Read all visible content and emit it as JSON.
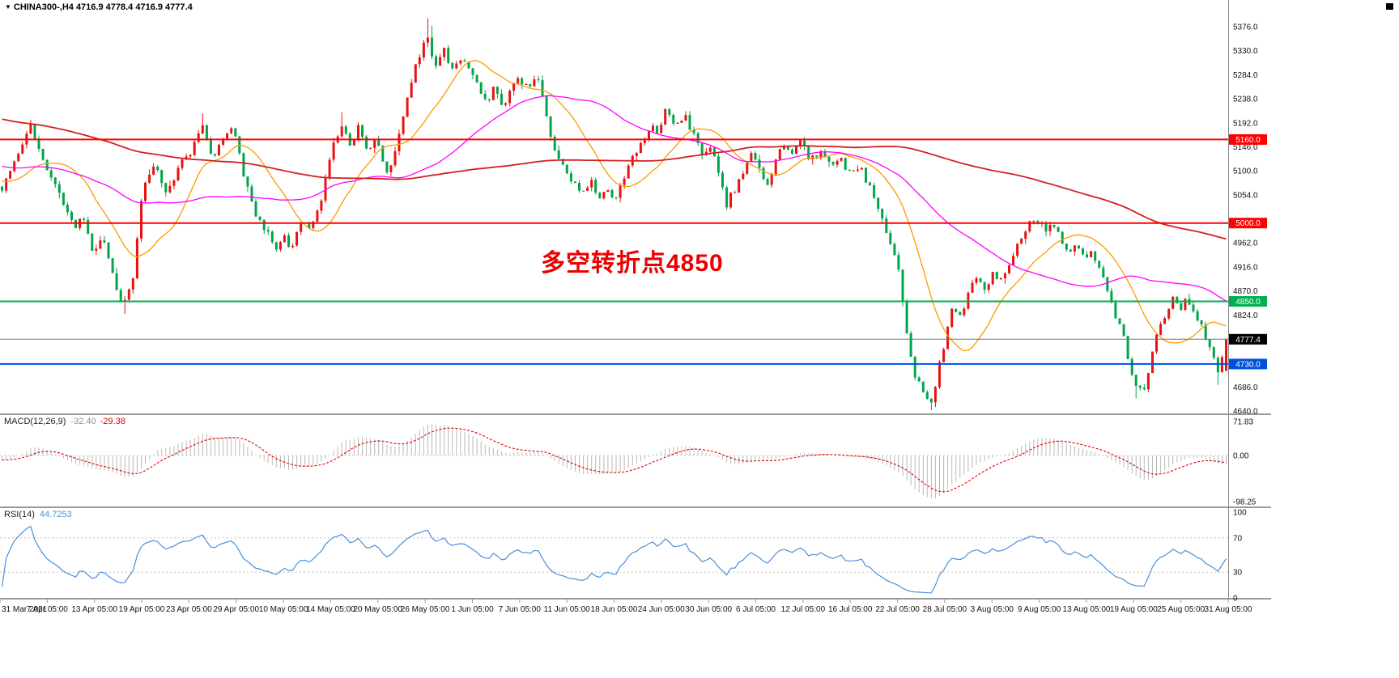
{
  "window": {
    "dropdown_icon": "▼",
    "symbol_ohlc": "CHINA300-,H4  4716.9 4778.4 4716.9 4777.4"
  },
  "annotation": {
    "text": "多空转折点4850",
    "color": "#ee0000"
  },
  "main_chart": {
    "y_axis": {
      "max": 5376.0,
      "min": 4640.0,
      "ticks": [
        5376.0,
        5330.0,
        5284.0,
        5238.0,
        5192.0,
        5146.0,
        5100.0,
        5054.0,
        4962.0,
        4916.0,
        4870.0,
        4824.0,
        4686.0,
        4640.0
      ]
    },
    "price_lines": [
      {
        "value": 5160.0,
        "label": "5160.0",
        "color": "#ff0000"
      },
      {
        "value": 5000.0,
        "label": "5000.0",
        "color": "#ff0000"
      },
      {
        "value": 4850.0,
        "label": "4850.0",
        "color": "#00b050"
      },
      {
        "value": 4730.0,
        "label": "4730.0",
        "color": "#0050e0"
      }
    ],
    "current_price": {
      "value": 4777.4,
      "label": "4777.4",
      "bg": "#000000"
    }
  },
  "macd_panel": {
    "label": "MACD(12,26,9)",
    "value_main": "-32.40",
    "value_signal": "-29.38",
    "scale": [
      "71.83",
      "0.00",
      "-98.25"
    ],
    "scale_values": [
      71.83,
      0.0,
      -98.25
    ],
    "histogram_color": "#b9b9b9",
    "signal_color": "#e00000"
  },
  "rsi_panel": {
    "label": "RSI(14)",
    "value": "44.7253",
    "scale": [
      "100",
      "70",
      "30",
      "0"
    ],
    "scale_values": [
      100,
      70,
      30,
      0
    ],
    "levels": [
      70,
      30
    ],
    "line_color": "#4a90d9"
  },
  "chart_data": {
    "type": "candlestick",
    "symbol": "CHINA300-",
    "timeframe": "H4",
    "ohlc": {
      "open": 4716.9,
      "high": 4778.4,
      "low": 4716.9,
      "close": 4777.4
    },
    "colors": {
      "bull": "#e81212",
      "bear": "#00a54a"
    },
    "moving_averages": [
      {
        "name": "fast",
        "period": 16,
        "color": "#ff9900"
      },
      {
        "name": "mid",
        "period": 48,
        "color": "#ff00ff"
      },
      {
        "name": "slow",
        "period": 150,
        "color": "#d42020"
      }
    ],
    "layout_hints": {
      "bars": 300,
      "grid": false,
      "legend": false
    },
    "price_anchors": [
      [
        0.0,
        5070
      ],
      [
        0.023,
        5185
      ],
      [
        0.04,
        5085
      ],
      [
        0.059,
        4990
      ],
      [
        0.066,
        5010
      ],
      [
        0.075,
        4935
      ],
      [
        0.082,
        4975
      ],
      [
        0.092,
        4890
      ],
      [
        0.099,
        4838
      ],
      [
        0.107,
        4900
      ],
      [
        0.115,
        5070
      ],
      [
        0.125,
        5110
      ],
      [
        0.135,
        5055
      ],
      [
        0.145,
        5110
      ],
      [
        0.155,
        5140
      ],
      [
        0.165,
        5185
      ],
      [
        0.173,
        5115
      ],
      [
        0.179,
        5160
      ],
      [
        0.19,
        5180
      ],
      [
        0.199,
        5075
      ],
      [
        0.208,
        5015
      ],
      [
        0.216,
        4985
      ],
      [
        0.223,
        4948
      ],
      [
        0.231,
        4978
      ],
      [
        0.236,
        4938
      ],
      [
        0.244,
        5000
      ],
      [
        0.252,
        4985
      ],
      [
        0.26,
        5040
      ],
      [
        0.27,
        5145
      ],
      [
        0.278,
        5195
      ],
      [
        0.285,
        5150
      ],
      [
        0.291,
        5180
      ],
      [
        0.298,
        5140
      ],
      [
        0.305,
        5165
      ],
      [
        0.315,
        5095
      ],
      [
        0.323,
        5150
      ],
      [
        0.331,
        5235
      ],
      [
        0.338,
        5305
      ],
      [
        0.347,
        5355
      ],
      [
        0.354,
        5295
      ],
      [
        0.361,
        5330
      ],
      [
        0.367,
        5290
      ],
      [
        0.374,
        5318
      ],
      [
        0.381,
        5298
      ],
      [
        0.389,
        5262
      ],
      [
        0.396,
        5228
      ],
      [
        0.402,
        5258
      ],
      [
        0.409,
        5222
      ],
      [
        0.415,
        5252
      ],
      [
        0.422,
        5282
      ],
      [
        0.43,
        5255
      ],
      [
        0.436,
        5285
      ],
      [
        0.443,
        5225
      ],
      [
        0.45,
        5150
      ],
      [
        0.458,
        5105
      ],
      [
        0.465,
        5085
      ],
      [
        0.473,
        5048
      ],
      [
        0.48,
        5082
      ],
      [
        0.487,
        5050
      ],
      [
        0.493,
        5068
      ],
      [
        0.501,
        5045
      ],
      [
        0.509,
        5092
      ],
      [
        0.517,
        5132
      ],
      [
        0.524,
        5162
      ],
      [
        0.531,
        5192
      ],
      [
        0.535,
        5172
      ],
      [
        0.542,
        5215
      ],
      [
        0.55,
        5185
      ],
      [
        0.557,
        5208
      ],
      [
        0.565,
        5165
      ],
      [
        0.572,
        5128
      ],
      [
        0.578,
        5150
      ],
      [
        0.585,
        5098
      ],
      [
        0.592,
        5035
      ],
      [
        0.599,
        5068
      ],
      [
        0.605,
        5098
      ],
      [
        0.612,
        5128
      ],
      [
        0.618,
        5108
      ],
      [
        0.625,
        5078
      ],
      [
        0.632,
        5118
      ],
      [
        0.638,
        5148
      ],
      [
        0.645,
        5128
      ],
      [
        0.653,
        5158
      ],
      [
        0.661,
        5118
      ],
      [
        0.668,
        5140
      ],
      [
        0.676,
        5108
      ],
      [
        0.684,
        5128
      ],
      [
        0.692,
        5098
      ],
      [
        0.7,
        5110
      ],
      [
        0.707,
        5078
      ],
      [
        0.713,
        5048
      ],
      [
        0.72,
        4998
      ],
      [
        0.727,
        4958
      ],
      [
        0.733,
        4900
      ],
      [
        0.74,
        4768
      ],
      [
        0.746,
        4705
      ],
      [
        0.753,
        4680
      ],
      [
        0.759,
        4658
      ],
      [
        0.766,
        4728
      ],
      [
        0.771,
        4782
      ],
      [
        0.777,
        4848
      ],
      [
        0.783,
        4818
      ],
      [
        0.79,
        4878
      ],
      [
        0.796,
        4898
      ],
      [
        0.803,
        4868
      ],
      [
        0.809,
        4908
      ],
      [
        0.816,
        4888
      ],
      [
        0.823,
        4928
      ],
      [
        0.829,
        4958
      ],
      [
        0.837,
        4992
      ],
      [
        0.845,
        5008
      ],
      [
        0.852,
        4988
      ],
      [
        0.858,
        5005
      ],
      [
        0.865,
        4962
      ],
      [
        0.871,
        4938
      ],
      [
        0.878,
        4958
      ],
      [
        0.885,
        4932
      ],
      [
        0.891,
        4942
      ],
      [
        0.898,
        4898
      ],
      [
        0.904,
        4868
      ],
      [
        0.911,
        4815
      ],
      [
        0.918,
        4765
      ],
      [
        0.923,
        4712
      ],
      [
        0.928,
        4688
      ],
      [
        0.933,
        4678
      ],
      [
        0.939,
        4748
      ],
      [
        0.945,
        4798
      ],
      [
        0.952,
        4828
      ],
      [
        0.957,
        4858
      ],
      [
        0.962,
        4838
      ],
      [
        0.969,
        4855
      ],
      [
        0.976,
        4818
      ],
      [
        0.982,
        4788
      ],
      [
        0.989,
        4748
      ],
      [
        0.994,
        4706
      ],
      [
        1.0,
        4777
      ]
    ],
    "wick_events": [
      {
        "t": 0.023,
        "high": 5198
      },
      {
        "t": 0.099,
        "low": 4826
      },
      {
        "t": 0.165,
        "high": 5210
      },
      {
        "t": 0.278,
        "high": 5212
      },
      {
        "t": 0.347,
        "high": 5392
      },
      {
        "t": 0.352,
        "high": 5378
      },
      {
        "t": 0.759,
        "low": 4642
      },
      {
        "t": 0.764,
        "low": 4655
      },
      {
        "t": 0.928,
        "low": 4664
      },
      {
        "t": 0.994,
        "low": 4690
      }
    ],
    "time_labels": [
      "31 Mar 2021",
      "7 Apr 05:00",
      "13 Apr 05:00",
      "19 Apr 05:00",
      "23 Apr 05:00",
      "29 Apr 05:00",
      "10 May 05:00",
      "14 May 05:00",
      "20 May 05:00",
      "26 May 05:00",
      "1 Jun 05:00",
      "7 Jun 05:00",
      "11 Jun 05:00",
      "18 Jun 05:00",
      "24 Jun 05:00",
      "30 Jun 05:00",
      "6 Jul 05:00",
      "12 Jul 05:00",
      "16 Jul 05:00",
      "22 Jul 05:00",
      "28 Jul 05:00",
      "3 Aug 05:00",
      "9 Aug 05:00",
      "13 Aug 05:00",
      "19 Aug 05:00",
      "25 Aug 05:00",
      "31 Aug 05:00"
    ]
  }
}
